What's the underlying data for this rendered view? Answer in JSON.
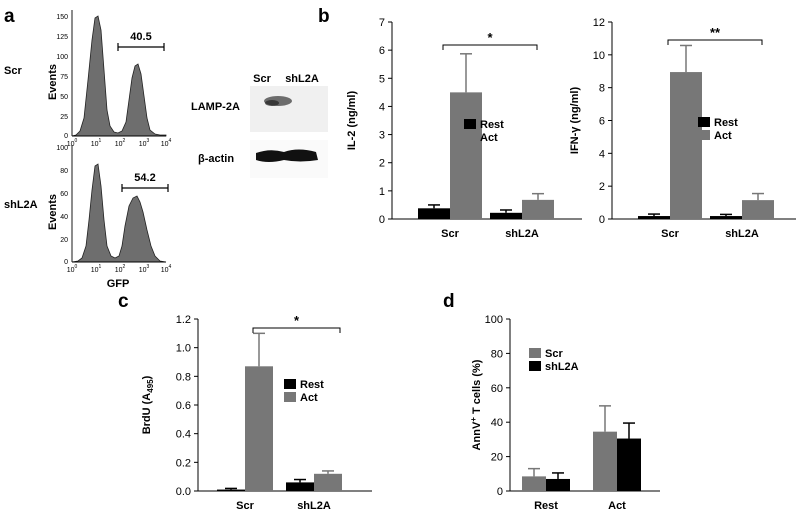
{
  "panels": {
    "a": {
      "letter": "a",
      "flow": [
        {
          "sample": "Scr",
          "y_label": "Events",
          "y_ticks": [
            "150",
            "125",
            "100",
            "75",
            "50",
            "25",
            "0"
          ],
          "x_tick_base": "10",
          "x_tick_exp": [
            "0",
            "1",
            "2",
            "3",
            "4"
          ],
          "gate_percent": "40.5"
        },
        {
          "sample": "shL2A",
          "y_label": "Events",
          "y_ticks": [
            "100",
            "80",
            "60",
            "40",
            "20",
            "0"
          ],
          "x_tick_base": "10",
          "x_tick_exp": [
            "0",
            "1",
            "2",
            "3",
            "4"
          ],
          "gate_percent": "54.2"
        }
      ],
      "x_label": "GFP",
      "blot": {
        "lanes": [
          "Scr",
          "shL2A"
        ],
        "bands": [
          "LAMP-2A",
          "β-actin"
        ]
      }
    },
    "b": {
      "letter": "b"
    },
    "c": {
      "letter": "c"
    },
    "d": {
      "letter": "d"
    }
  },
  "chart_data": [
    {
      "id": "b-il2",
      "type": "bar",
      "categories": [
        "Scr",
        "shL2A"
      ],
      "series": [
        {
          "name": "Rest",
          "color": "#000000",
          "values": [
            0.38,
            0.22
          ],
          "errors": [
            0.12,
            0.1
          ]
        },
        {
          "name": "Act",
          "color": "#777777",
          "values": [
            4.5,
            0.68
          ],
          "errors": [
            1.37,
            0.22
          ]
        }
      ],
      "ylabel": "IL-2  (ng/ml)",
      "ylim": [
        0,
        7
      ],
      "yticks": [
        "0",
        "1",
        "2",
        "3",
        "4",
        "5",
        "6",
        "7"
      ],
      "significance": "*",
      "legend_position": "center-right"
    },
    {
      "id": "b-ifng",
      "type": "bar",
      "categories": [
        "Scr",
        "shL2A"
      ],
      "series": [
        {
          "name": "Rest",
          "color": "#000000",
          "values": [
            0.18,
            0.18
          ],
          "errors": [
            0.12,
            0.1
          ]
        },
        {
          "name": "Act",
          "color": "#777777",
          "values": [
            8.95,
            1.15
          ],
          "errors": [
            1.62,
            0.4
          ]
        }
      ],
      "ylabel": "IFN-γ  (ng/ml)",
      "ylim": [
        0,
        12
      ],
      "yticks": [
        "0",
        "2",
        "4",
        "6",
        "8",
        "10",
        "12"
      ],
      "significance": "**",
      "legend_position": "center-right"
    },
    {
      "id": "c-brdu",
      "type": "bar",
      "categories": [
        "Scr",
        "shL2A"
      ],
      "series": [
        {
          "name": "Rest",
          "color": "#000000",
          "values": [
            0.01,
            0.06
          ],
          "errors": [
            0.008,
            0.02
          ]
        },
        {
          "name": "Act",
          "color": "#777777",
          "values": [
            0.87,
            0.12
          ],
          "errors": [
            0.23,
            0.02
          ]
        }
      ],
      "ylabel_main": "BrdU (A",
      "ylabel_sub": "495",
      "ylabel_end": ")",
      "ylim": [
        0,
        1.2
      ],
      "yticks": [
        "0.0",
        "0.2",
        "0.4",
        "0.6",
        "0.8",
        "1.0",
        "1.2"
      ],
      "significance": "*",
      "legend_position": "center-right"
    },
    {
      "id": "d-annv",
      "type": "bar",
      "categories": [
        "Rest",
        "Act"
      ],
      "series": [
        {
          "name": "Scr",
          "color": "#777777",
          "values": [
            8.5,
            34.5
          ],
          "errors": [
            4.5,
            15
          ]
        },
        {
          "name": "shL2A",
          "color": "#000000",
          "values": [
            7,
            30.5
          ],
          "errors": [
            3.5,
            9
          ]
        }
      ],
      "ylabel_pre": "AnnV",
      "ylabel_sup": "+",
      "ylabel_post": " T cells (%)",
      "ylim": [
        0,
        100
      ],
      "yticks": [
        "0",
        "20",
        "40",
        "60",
        "80",
        "100"
      ],
      "legend_position": "top-left"
    }
  ]
}
